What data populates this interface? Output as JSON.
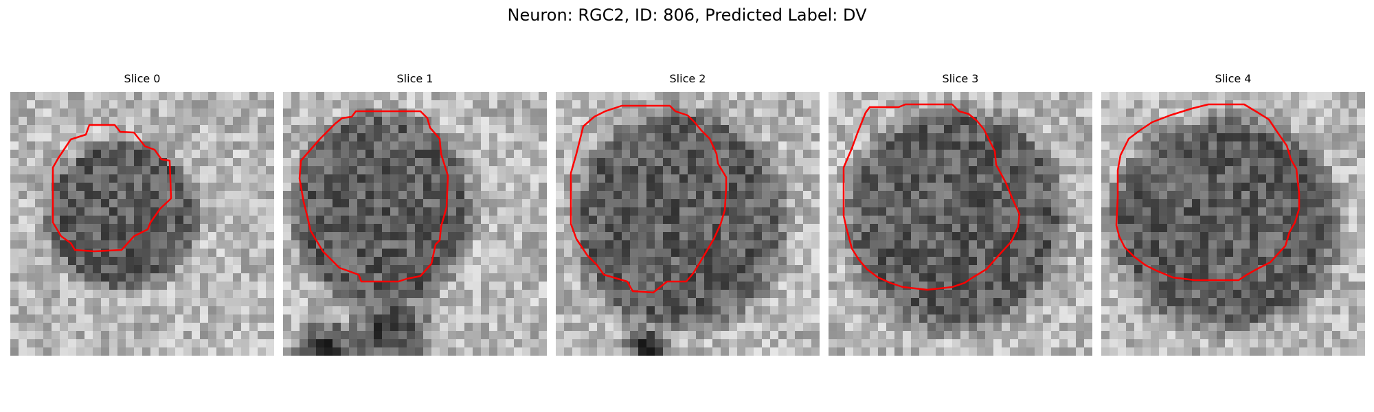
{
  "figure": {
    "title": "Neuron: RGC2, ID: 806, Predicted Label: DV"
  },
  "colors": {
    "contour": "#ff0000",
    "background": "#ffffff",
    "colormap": "gray"
  },
  "slices": [
    {
      "title": "Slice 0"
    },
    {
      "title": "Slice 1"
    },
    {
      "title": "Slice 2"
    },
    {
      "title": "Slice 3"
    },
    {
      "title": "Slice 4"
    }
  ]
}
